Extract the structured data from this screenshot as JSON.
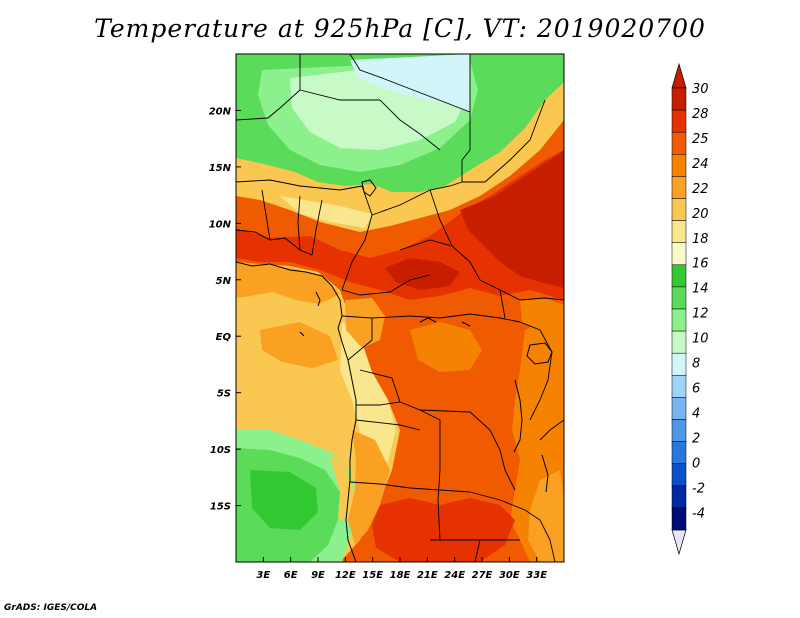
{
  "title": "Temperature at 925hPa [C], VT: 2019020700",
  "credit": "GrADS: IGES/COLA",
  "map": {
    "lon_range": [
      0,
      36
    ],
    "lat_range": [
      -20,
      25
    ],
    "lon_ticks": [
      {
        "value": 3,
        "label": "3E"
      },
      {
        "value": 6,
        "label": "6E"
      },
      {
        "value": 9,
        "label": "9E"
      },
      {
        "value": 12,
        "label": "12E"
      },
      {
        "value": 15,
        "label": "15E"
      },
      {
        "value": 18,
        "label": "18E"
      },
      {
        "value": 21,
        "label": "21E"
      },
      {
        "value": 24,
        "label": "24E"
      },
      {
        "value": 27,
        "label": "27E"
      },
      {
        "value": 30,
        "label": "30E"
      },
      {
        "value": 33,
        "label": "33E"
      }
    ],
    "lat_ticks": [
      {
        "value": 20,
        "label": "20N"
      },
      {
        "value": 15,
        "label": "15N"
      },
      {
        "value": 10,
        "label": "10N"
      },
      {
        "value": 5,
        "label": "5N"
      },
      {
        "value": 0,
        "label": "EQ"
      },
      {
        "value": -5,
        "label": "5S"
      },
      {
        "value": -10,
        "label": "10S"
      },
      {
        "value": -15,
        "label": "15S"
      }
    ]
  },
  "colorbar": {
    "labels": [
      "30",
      "28",
      "25",
      "24",
      "22",
      "20",
      "18",
      "16",
      "14",
      "12",
      "10",
      "8",
      "6",
      "4",
      "2",
      "0",
      "-2",
      "-4"
    ],
    "colors": [
      "#c81e00",
      "#e63200",
      "#f05a00",
      "#f58200",
      "#faa023",
      "#fac850",
      "#fae68c",
      "#fafac8",
      "#32c832",
      "#5adc5a",
      "#8cf08c",
      "#c8fac8",
      "#d2f5fa",
      "#a0d2fa",
      "#78b4f0",
      "#5096e6",
      "#2878dc",
      "#0a50c8",
      "#0028a0",
      "#000a78"
    ],
    "under_color": "#e6e6fa",
    "over_color": "#c81e00"
  }
}
